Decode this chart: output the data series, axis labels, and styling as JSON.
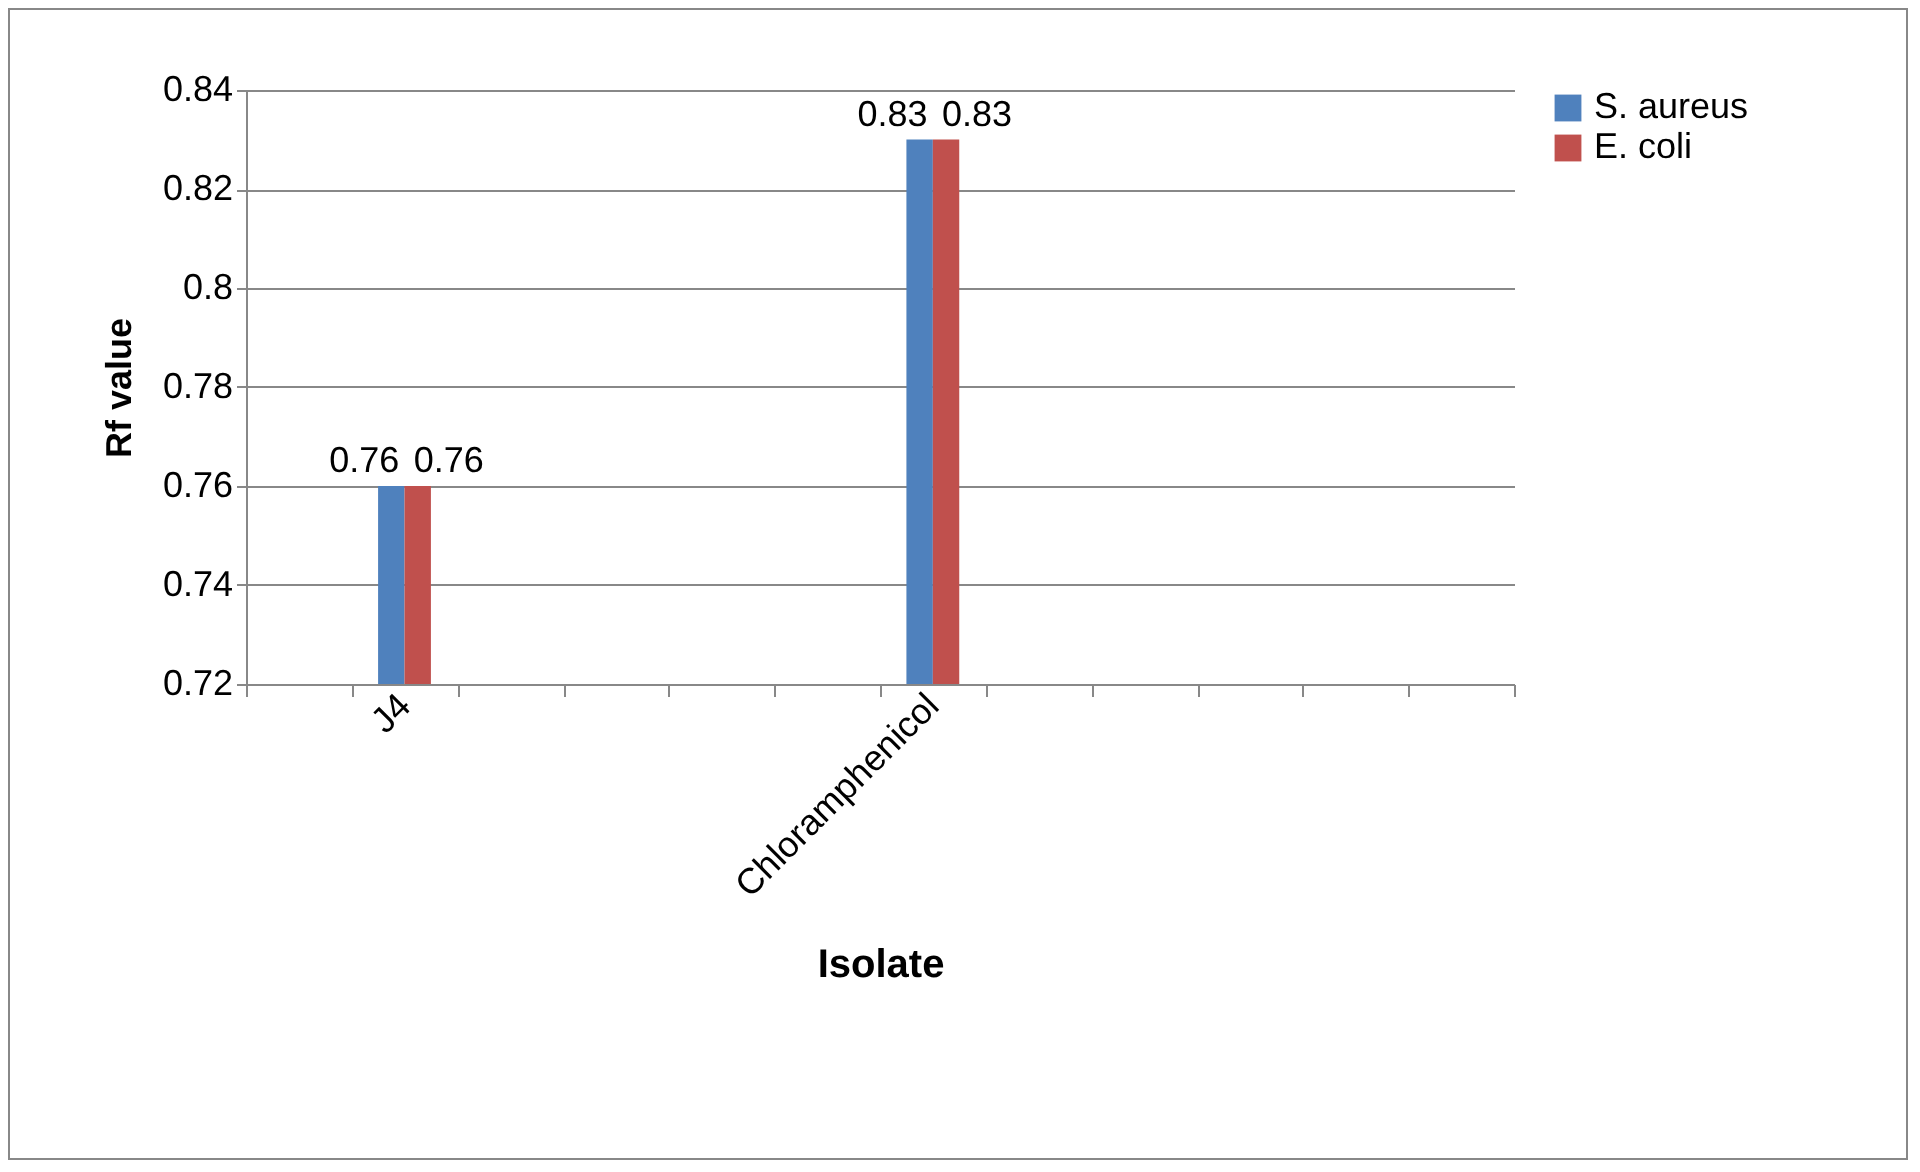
{
  "chart_data": {
    "type": "bar",
    "xlabel": "Isolate",
    "ylabel": "Rf value",
    "categories": [
      null,
      "J4",
      null,
      null,
      null,
      null,
      "Chloramphenicol",
      null,
      null,
      null,
      null,
      null
    ],
    "series": [
      {
        "name": "S. aureus",
        "color": "#4f81bd",
        "values": [
          null,
          0.76,
          null,
          null,
          null,
          null,
          0.83,
          null,
          null,
          null,
          null,
          null
        ]
      },
      {
        "name": "E. coli",
        "color": "#c0504d",
        "values": [
          null,
          0.76,
          null,
          null,
          null,
          null,
          0.83,
          null,
          null,
          null,
          null,
          null
        ]
      }
    ],
    "ylim": [
      0.72,
      0.84
    ],
    "yticks": [
      0.72,
      0.74,
      0.76,
      0.78,
      0.8,
      0.82,
      0.84
    ],
    "grid": "y",
    "legend": "right",
    "data_labels": true
  }
}
